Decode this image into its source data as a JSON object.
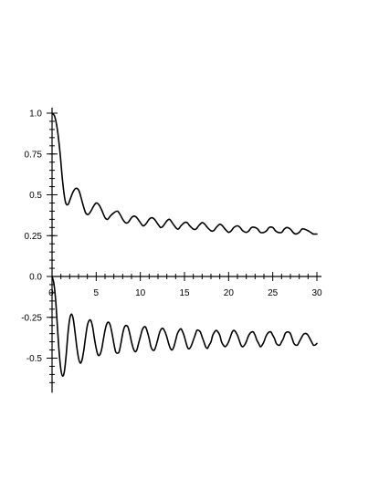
{
  "chart_data": {
    "type": "line",
    "title": "",
    "xlabel": "",
    "ylabel": "",
    "xlim": [
      0,
      30
    ],
    "ylim": [
      -0.65,
      1.0
    ],
    "grid": false,
    "legend": "none",
    "x_ticks": [
      {
        "value": 5,
        "label": "5"
      },
      {
        "value": 10,
        "label": "10"
      },
      {
        "value": 15,
        "label": "15"
      },
      {
        "value": 20,
        "label": "20"
      },
      {
        "value": 25,
        "label": "25"
      },
      {
        "value": 30,
        "label": "30"
      }
    ],
    "origin_label": "0",
    "y_ticks": [
      {
        "value": 1.0,
        "label": "1.0"
      },
      {
        "value": 0.75,
        "label": "0.75"
      },
      {
        "value": 0.5,
        "label": "0.5"
      },
      {
        "value": 0.25,
        "label": "0.25"
      },
      {
        "value": 0.0,
        "label": "0.0"
      },
      {
        "value": -0.25,
        "label": "-0.25"
      },
      {
        "value": -0.5,
        "label": "-0.5"
      }
    ],
    "y_minor_step": 0.05,
    "series": [
      {
        "color": "#000000",
        "x": [
          0.0,
          0.3,
          0.6,
          0.9,
          1.2,
          1.5,
          1.8,
          2.1,
          2.4,
          2.7,
          3.0,
          3.2,
          3.5,
          3.8,
          4.1,
          4.4,
          4.7,
          5.0,
          5.3,
          5.6,
          6.0,
          6.3,
          6.6,
          7.0,
          7.4,
          7.7,
          8.0,
          8.3,
          8.6,
          9.0,
          9.3,
          9.6,
          10.0,
          10.3,
          10.6,
          11.0,
          11.3,
          11.6,
          12.0,
          12.3,
          12.6,
          13.0,
          13.3,
          13.6,
          14.0,
          14.3,
          14.6,
          15.0,
          15.3,
          15.6,
          16.0,
          16.3,
          16.6,
          17.0,
          17.3,
          17.6,
          18.0,
          18.3,
          18.6,
          19.0,
          19.3,
          19.6,
          20.0,
          20.3,
          20.6,
          21.0,
          21.3,
          21.6,
          22.0,
          22.3,
          22.6,
          23.0,
          23.3,
          23.6,
          24.0,
          24.3,
          24.6,
          25.0,
          25.3,
          25.6,
          26.0,
          26.3,
          26.6,
          27.0,
          27.3,
          27.6,
          28.0,
          28.3,
          28.6,
          29.0,
          29.3,
          29.6,
          30.0
        ],
        "values": [
          1.0,
          0.98,
          0.9,
          0.76,
          0.58,
          0.46,
          0.44,
          0.48,
          0.52,
          0.54,
          0.53,
          0.5,
          0.44,
          0.39,
          0.38,
          0.4,
          0.43,
          0.45,
          0.44,
          0.41,
          0.36,
          0.35,
          0.37,
          0.39,
          0.4,
          0.38,
          0.35,
          0.33,
          0.33,
          0.36,
          0.37,
          0.36,
          0.33,
          0.31,
          0.32,
          0.35,
          0.36,
          0.35,
          0.32,
          0.3,
          0.31,
          0.34,
          0.35,
          0.33,
          0.3,
          0.29,
          0.31,
          0.33,
          0.33,
          0.31,
          0.29,
          0.29,
          0.31,
          0.33,
          0.32,
          0.3,
          0.28,
          0.28,
          0.3,
          0.32,
          0.31,
          0.29,
          0.27,
          0.28,
          0.3,
          0.31,
          0.3,
          0.28,
          0.27,
          0.28,
          0.3,
          0.3,
          0.29,
          0.27,
          0.27,
          0.28,
          0.3,
          0.3,
          0.28,
          0.27,
          0.27,
          0.29,
          0.3,
          0.29,
          0.27,
          0.26,
          0.27,
          0.29,
          0.29,
          0.28,
          0.27,
          0.26,
          0.26
        ]
      },
      {
        "color": "#000000",
        "x": [
          0.0,
          0.2,
          0.4,
          0.6,
          0.8,
          1.0,
          1.2,
          1.4,
          1.6,
          1.8,
          2.0,
          2.2,
          2.4,
          2.6,
          2.8,
          3.0,
          3.2,
          3.4,
          3.6,
          3.8,
          4.0,
          4.2,
          4.4,
          4.6,
          4.8,
          5.0,
          5.2,
          5.4,
          5.6,
          5.8,
          6.0,
          6.2,
          6.4,
          6.6,
          6.8,
          7.0,
          7.2,
          7.4,
          7.6,
          7.8,
          8.0,
          8.2,
          8.4,
          8.6,
          8.8,
          9.0,
          9.2,
          9.4,
          9.6,
          9.8,
          10.0,
          10.2,
          10.4,
          10.6,
          10.8,
          11.0,
          11.2,
          11.4,
          11.6,
          11.8,
          12.0,
          12.2,
          12.4,
          12.6,
          12.8,
          13.0,
          13.2,
          13.4,
          13.6,
          13.8,
          14.0,
          14.2,
          14.4,
          14.6,
          14.8,
          15.0,
          15.2,
          15.4,
          15.6,
          15.8,
          16.0,
          16.2,
          16.4,
          16.6,
          16.8,
          17.0,
          17.2,
          17.4,
          17.6,
          17.8,
          18.0,
          18.2,
          18.4,
          18.6,
          18.8,
          19.0,
          19.2,
          19.4,
          19.6,
          19.8,
          20.0,
          20.2,
          20.4,
          20.6,
          20.8,
          21.0,
          21.2,
          21.4,
          21.6,
          21.8,
          22.0,
          22.2,
          22.4,
          22.6,
          22.8,
          23.0,
          23.2,
          23.4,
          23.6,
          23.8,
          24.0,
          24.2,
          24.4,
          24.6,
          24.8,
          25.0,
          25.2,
          25.4,
          25.6,
          25.8,
          26.0,
          26.2,
          26.4,
          26.6,
          26.8,
          27.0,
          27.2,
          27.4,
          27.6,
          27.8,
          28.0,
          28.2,
          28.4,
          28.6,
          28.8,
          29.0,
          29.2,
          29.4,
          29.6,
          29.8,
          30.0
        ],
        "values": [
          0.0,
          -0.04,
          -0.14,
          -0.3,
          -0.46,
          -0.57,
          -0.61,
          -0.58,
          -0.48,
          -0.35,
          -0.26,
          -0.23,
          -0.26,
          -0.34,
          -0.43,
          -0.5,
          -0.53,
          -0.51,
          -0.45,
          -0.37,
          -0.3,
          -0.27,
          -0.27,
          -0.31,
          -0.38,
          -0.44,
          -0.48,
          -0.48,
          -0.45,
          -0.39,
          -0.33,
          -0.29,
          -0.28,
          -0.3,
          -0.35,
          -0.41,
          -0.46,
          -0.47,
          -0.46,
          -0.41,
          -0.35,
          -0.31,
          -0.3,
          -0.31,
          -0.35,
          -0.4,
          -0.44,
          -0.46,
          -0.45,
          -0.41,
          -0.37,
          -0.33,
          -0.31,
          -0.31,
          -0.34,
          -0.38,
          -0.43,
          -0.45,
          -0.45,
          -0.42,
          -0.38,
          -0.34,
          -0.32,
          -0.32,
          -0.34,
          -0.37,
          -0.41,
          -0.44,
          -0.45,
          -0.43,
          -0.39,
          -0.35,
          -0.33,
          -0.32,
          -0.34,
          -0.37,
          -0.41,
          -0.44,
          -0.44,
          -0.42,
          -0.39,
          -0.36,
          -0.33,
          -0.33,
          -0.34,
          -0.37,
          -0.4,
          -0.43,
          -0.44,
          -0.42,
          -0.4,
          -0.36,
          -0.34,
          -0.33,
          -0.34,
          -0.36,
          -0.4,
          -0.42,
          -0.43,
          -0.42,
          -0.4,
          -0.37,
          -0.34,
          -0.33,
          -0.34,
          -0.36,
          -0.39,
          -0.42,
          -0.43,
          -0.42,
          -0.4,
          -0.37,
          -0.35,
          -0.34,
          -0.34,
          -0.36,
          -0.39,
          -0.41,
          -0.43,
          -0.42,
          -0.4,
          -0.37,
          -0.35,
          -0.34,
          -0.34,
          -0.36,
          -0.38,
          -0.41,
          -0.42,
          -0.42,
          -0.4,
          -0.38,
          -0.35,
          -0.34,
          -0.34,
          -0.35,
          -0.38,
          -0.41,
          -0.42,
          -0.42,
          -0.4,
          -0.38,
          -0.36,
          -0.35,
          -0.35,
          -0.36,
          -0.38,
          -0.4,
          -0.42,
          -0.42,
          -0.41
        ]
      }
    ]
  }
}
